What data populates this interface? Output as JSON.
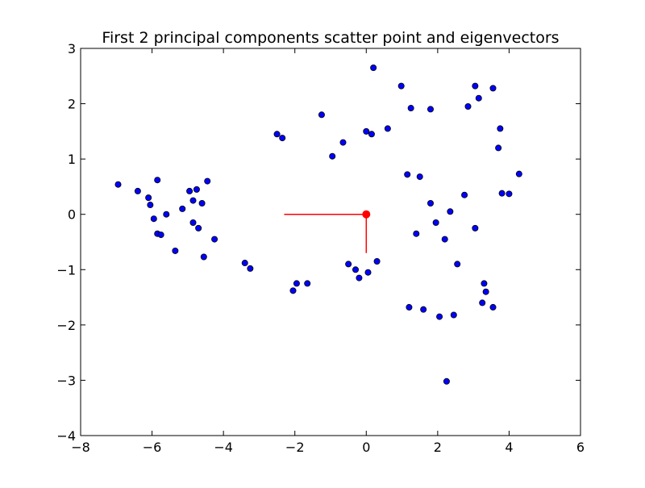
{
  "chart_data": {
    "type": "scatter",
    "title": "First 2 principal components scatter point and eigenvectors",
    "xlabel": "",
    "ylabel": "",
    "xlim": [
      -8,
      6
    ],
    "ylim": [
      -4,
      3
    ],
    "x_ticks": [
      -8,
      -6,
      -4,
      -2,
      0,
      2,
      4,
      6
    ],
    "y_ticks": [
      -4,
      -3,
      -2,
      -1,
      0,
      1,
      2,
      3
    ],
    "x_tick_labels": [
      "−8",
      "−6",
      "−4",
      "−2",
      "0",
      "2",
      "4",
      "6"
    ],
    "y_tick_labels": [
      "−4",
      "−3",
      "−2",
      "−1",
      "0",
      "1",
      "2",
      "3"
    ],
    "grid": false,
    "marker_color": "#0000ff",
    "marker_edge_color": "#000000",
    "vector_color": "#ff0000",
    "series": [
      {
        "points": [
          [
            -6.95,
            0.54
          ],
          [
            -6.4,
            0.42
          ],
          [
            -6.1,
            0.3
          ],
          [
            -6.05,
            0.17
          ],
          [
            -5.85,
            0.62
          ],
          [
            -5.95,
            -0.08
          ],
          [
            -5.85,
            -0.35
          ],
          [
            -5.75,
            -0.37
          ],
          [
            -5.6,
            0.0
          ],
          [
            -5.35,
            -0.66
          ],
          [
            -5.15,
            0.1
          ],
          [
            -4.95,
            0.42
          ],
          [
            -4.85,
            0.25
          ],
          [
            -4.75,
            0.45
          ],
          [
            -4.85,
            -0.15
          ],
          [
            -4.7,
            -0.25
          ],
          [
            -4.55,
            -0.77
          ],
          [
            -4.45,
            0.6
          ],
          [
            -4.25,
            -0.45
          ],
          [
            -4.6,
            0.2
          ],
          [
            -2.5,
            1.45
          ],
          [
            -2.35,
            1.38
          ],
          [
            -1.25,
            1.8
          ],
          [
            -0.95,
            1.05
          ],
          [
            -0.65,
            1.3
          ],
          [
            0.0,
            1.5
          ],
          [
            0.15,
            1.45
          ],
          [
            0.2,
            2.65
          ],
          [
            0.6,
            1.55
          ],
          [
            0.98,
            2.32
          ],
          [
            -3.25,
            -0.98
          ],
          [
            -3.4,
            -0.88
          ],
          [
            -2.05,
            -1.38
          ],
          [
            -1.95,
            -1.25
          ],
          [
            -1.65,
            -1.25
          ],
          [
            -0.5,
            -0.9
          ],
          [
            -0.3,
            -1.0
          ],
          [
            -0.2,
            -1.15
          ],
          [
            0.3,
            -0.85
          ],
          [
            0.05,
            -1.05
          ],
          [
            2.25,
            -3.02
          ],
          [
            3.3,
            -1.25
          ],
          [
            3.35,
            -1.4
          ],
          [
            3.55,
            -1.68
          ],
          [
            3.25,
            -1.6
          ],
          [
            4.28,
            0.73
          ],
          [
            4.0,
            0.37
          ],
          [
            3.8,
            0.38
          ],
          [
            3.75,
            1.55
          ],
          [
            3.7,
            1.2
          ],
          [
            3.05,
            2.32
          ],
          [
            3.55,
            2.28
          ],
          [
            3.15,
            2.1
          ],
          [
            2.85,
            1.95
          ],
          [
            1.25,
            1.92
          ],
          [
            1.8,
            1.9
          ],
          [
            1.2,
            -1.68
          ],
          [
            1.6,
            -1.72
          ],
          [
            2.05,
            -1.85
          ],
          [
            2.45,
            -1.82
          ],
          [
            1.15,
            0.72
          ],
          [
            1.5,
            0.68
          ],
          [
            1.8,
            0.2
          ],
          [
            2.2,
            -0.45
          ],
          [
            2.55,
            -0.9
          ],
          [
            1.95,
            -0.15
          ],
          [
            2.35,
            0.05
          ],
          [
            1.4,
            -0.35
          ],
          [
            2.75,
            0.35
          ],
          [
            3.05,
            -0.25
          ]
        ]
      }
    ],
    "eigenvectors": [
      {
        "start": [
          0,
          0
        ],
        "end": [
          -2.3,
          0
        ]
      },
      {
        "start": [
          0,
          0
        ],
        "end": [
          0,
          -0.7
        ]
      }
    ],
    "mean_point": [
      0,
      0
    ]
  }
}
